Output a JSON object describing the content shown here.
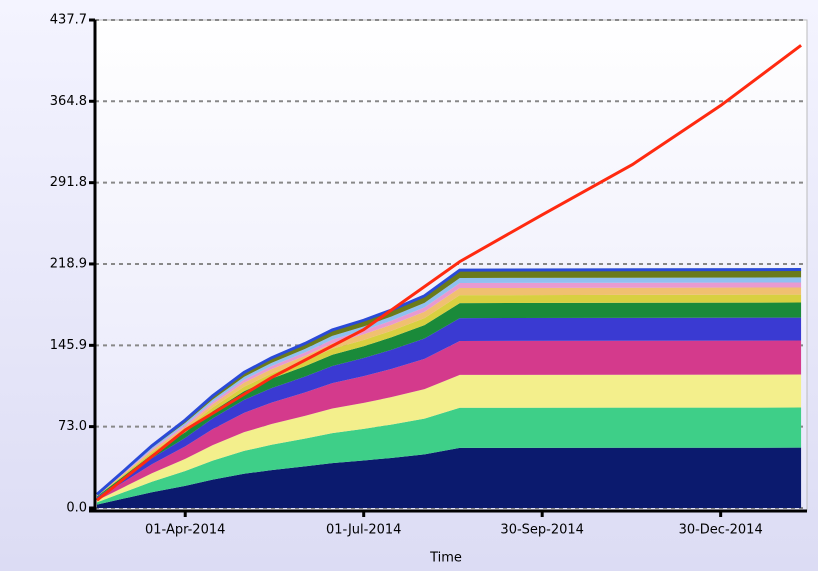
{
  "chart_data": {
    "type": "stacked_area",
    "x_label": "Time",
    "x": [
      "2014-02-15",
      "2014-03-01",
      "2014-03-15",
      "2014-04-01",
      "2014-04-15",
      "2014-05-01",
      "2014-05-15",
      "2014-06-01",
      "2014-06-15",
      "2014-07-01",
      "2014-07-15",
      "2014-08-01",
      "2014-08-19",
      "2015-02-09"
    ],
    "xlim": [
      "2014-02-14",
      "2015-02-11"
    ],
    "xticks": [
      {
        "value": "2014-04-01",
        "label": "01-Apr-2014"
      },
      {
        "value": "2014-07-01",
        "label": "01-Jul-2014"
      },
      {
        "value": "2014-09-30",
        "label": "30-Sep-2014"
      },
      {
        "value": "2014-12-30",
        "label": "30-Dec-2014"
      }
    ],
    "ylim": [
      0,
      437.7
    ],
    "yticks": [
      {
        "value": 0,
        "label": "0.0"
      },
      {
        "value": 73,
        "label": "73.0"
      },
      145.9,
      218.9,
      291.8,
      364.8,
      437.7
    ],
    "grid": true,
    "series": [
      {
        "color": "#0b1a6e",
        "values": [
          3.0,
          8.6,
          14.1,
          19.9,
          25.5,
          30.7,
          34.0,
          37.3,
          40.3,
          42.6,
          44.9,
          48.1,
          53.9,
          54.1
        ]
      },
      {
        "color": "#3ecf88",
        "values": [
          2.0,
          5.7,
          9.4,
          13.3,
          17.0,
          20.5,
          22.7,
          24.9,
          26.9,
          28.4,
          29.9,
          32.1,
          36.0,
          36.0
        ]
      },
      {
        "color": "#f3ef8c",
        "values": [
          1.7,
          4.7,
          7.7,
          10.9,
          13.9,
          16.8,
          18.6,
          20.4,
          22.1,
          23.3,
          24.6,
          26.4,
          29.5,
          29.6
        ]
      },
      {
        "color": "#d43a8c",
        "values": [
          1.7,
          4.8,
          8.0,
          11.2,
          14.3,
          17.3,
          19.2,
          21.0,
          22.7,
          24.0,
          25.3,
          27.1,
          30.4,
          30.5
        ]
      },
      {
        "color": "#3a3ad2",
        "values": [
          1.2,
          3.3,
          5.4,
          7.6,
          9.7,
          11.7,
          13.0,
          14.2,
          15.4,
          16.2,
          17.1,
          18.3,
          20.5,
          20.6
        ]
      },
      {
        "color": "#1a8a3a",
        "values": [
          0.8,
          2.1,
          3.5,
          5.0,
          6.4,
          7.7,
          8.5,
          9.3,
          10.1,
          10.6,
          11.2,
          12.0,
          13.5,
          13.5
        ]
      },
      {
        "color": "#d8d040",
        "values": [
          0.4,
          1.1,
          1.8,
          2.6,
          3.3,
          4.0,
          4.5,
          4.9,
          5.3,
          5.6,
          5.9,
          6.3,
          7.1,
          7.1
        ]
      },
      {
        "color": "#f0c070",
        "values": [
          0.4,
          1.0,
          1.7,
          2.4,
          3.0,
          3.7,
          4.1,
          4.4,
          4.8,
          5.1,
          5.3,
          5.7,
          6.4,
          6.4
        ]
      },
      {
        "color": "#e89ad0",
        "values": [
          0.3,
          0.7,
          1.2,
          1.7,
          2.1,
          2.6,
          2.8,
          3.1,
          3.4,
          3.5,
          3.7,
          4.0,
          4.5,
          4.5
        ]
      },
      {
        "color": "#90c0f0",
        "values": [
          0.3,
          0.7,
          1.2,
          1.7,
          2.1,
          2.6,
          2.8,
          3.1,
          3.4,
          3.5,
          3.7,
          4.0,
          4.5,
          4.5
        ]
      },
      {
        "color": "#6a7a1a",
        "values": [
          0.4,
          1.1,
          1.8,
          2.6,
          3.3,
          4.0,
          4.5,
          4.9,
          5.3,
          5.6,
          5.9,
          6.3,
          7.1,
          7.1
        ]
      }
    ],
    "line": {
      "color": "#ff2a10",
      "x": [
        "2014-02-15",
        "2014-04-01",
        "2014-05-15",
        "2014-07-01",
        "2014-08-19",
        "2014-09-30",
        "2014-11-15",
        "2014-12-30",
        "2015-02-09"
      ],
      "values": [
        7,
        70,
        117,
        160,
        221,
        263,
        308,
        361,
        415
      ]
    }
  }
}
